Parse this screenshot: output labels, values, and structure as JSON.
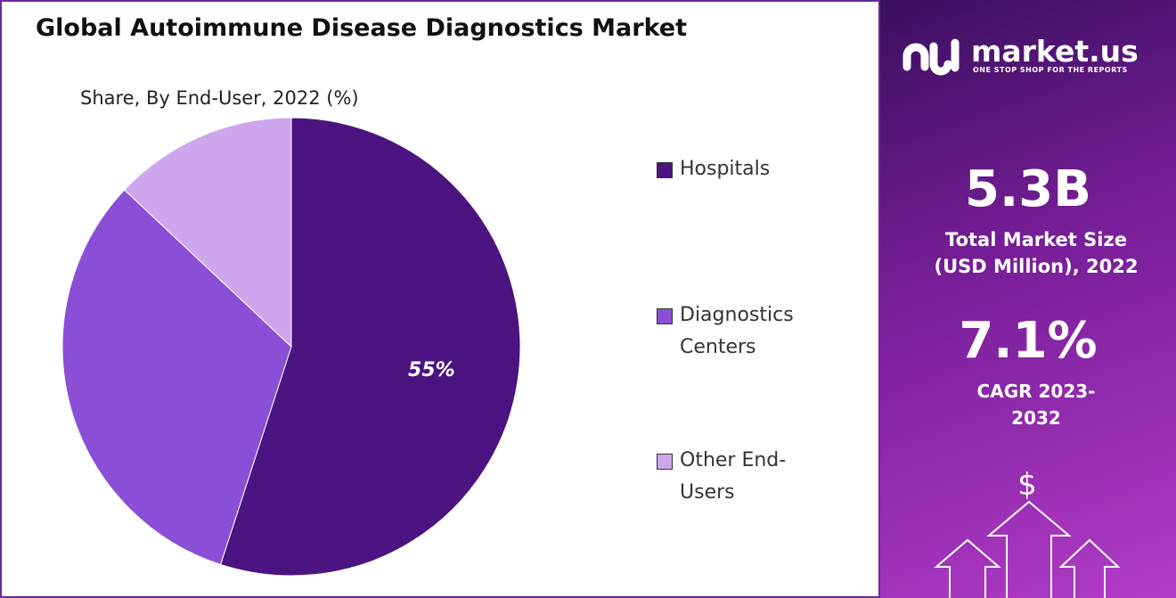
{
  "chart_data": {
    "type": "pie",
    "title": "Global Autoimmune Disease Diagnostics Market",
    "subtitle": "Share, By End-User, 2022 (%)",
    "categories": [
      "Hospitals",
      "Diagnostics Centers",
      "Other End-Users"
    ],
    "values": [
      55,
      32,
      13
    ],
    "value_labels": [
      "55%",
      null,
      null
    ],
    "colors": [
      "#4b1480",
      "#8a4fd6",
      "#cfa6ee"
    ],
    "legend": "right"
  },
  "panel": {
    "brand": "market.us",
    "tagline": "ONE STOP SHOP FOR THE REPORTS",
    "market_size": "5.3B",
    "market_size_label": "Total Market Size (USD Million), 2022",
    "cagr": "7.1%",
    "cagr_label": "CAGR 2023-2032",
    "icon": "$"
  }
}
